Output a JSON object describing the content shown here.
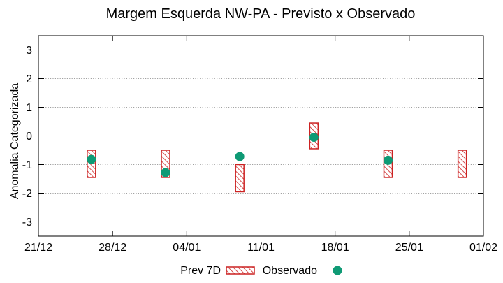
{
  "chart_data": {
    "type": "bar",
    "title": "Margem Esquerda NW-PA - Previsto x Observado",
    "xlabel": "",
    "ylabel": "Anomalia Categorizada",
    "x_axis": {
      "type": "date",
      "range": [
        "2020-12-21",
        "2021-02-01"
      ],
      "ticks": [
        "2020-12-21",
        "2020-12-28",
        "2021-01-04",
        "2021-01-11",
        "2021-01-18",
        "2021-01-25",
        "2021-02-01"
      ],
      "tick_labels": [
        "21/12",
        "28/12",
        "04/01",
        "11/01",
        "18/01",
        "25/01",
        "01/02"
      ]
    },
    "y_axis": {
      "range": [
        -3.5,
        3.5
      ],
      "ticks": [
        3,
        2,
        1,
        0,
        -1,
        -2,
        -3
      ],
      "tick_labels": [
        "3",
        "2",
        "1",
        "0",
        "-1",
        "-2",
        "-3"
      ],
      "grid": true
    },
    "legend": {
      "placement": "bottom-center"
    },
    "series": [
      {
        "name": "Prev 7D",
        "kind": "range-box",
        "color": "#cc2222",
        "pattern": "diagonal-hatch",
        "points": [
          {
            "date": "2020-12-26",
            "low": -1.45,
            "high": -0.5
          },
          {
            "date": "2021-01-02",
            "low": -1.45,
            "high": -0.5
          },
          {
            "date": "2021-01-09",
            "low": -1.95,
            "high": -1.0
          },
          {
            "date": "2021-01-16",
            "low": -0.45,
            "high": 0.45
          },
          {
            "date": "2021-01-23",
            "low": -1.45,
            "high": -0.5
          },
          {
            "date": "2021-01-30",
            "low": -1.45,
            "high": -0.5
          }
        ]
      },
      {
        "name": "Observado",
        "kind": "point",
        "color": "#0f9a75",
        "points": [
          {
            "date": "2020-12-26",
            "value": -0.82
          },
          {
            "date": "2021-01-02",
            "value": -1.28
          },
          {
            "date": "2021-01-09",
            "value": -0.72
          },
          {
            "date": "2021-01-16",
            "value": -0.05
          },
          {
            "date": "2021-01-23",
            "value": -0.85
          }
        ]
      }
    ]
  }
}
